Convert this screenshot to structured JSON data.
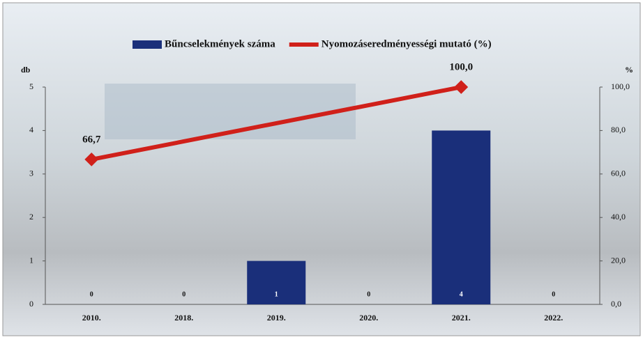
{
  "chart_data": {
    "type": "bar-line",
    "legend_position": "top",
    "y_label": "db",
    "y2_label": "%",
    "categories": [
      "2010.",
      "2018.",
      "2019.",
      "2020.",
      "2021.",
      "2022."
    ],
    "series": [
      {
        "name": "Bűncselekmények száma",
        "type": "bar",
        "color": "#1a2f7a",
        "values": [
          0,
          0,
          1,
          0,
          4,
          0
        ]
      },
      {
        "name": "Nyomozáseredményességi mutató (%)",
        "type": "line",
        "axis": "y2",
        "color": "#d0201a",
        "connect_gaps": true,
        "values": [
          66.7,
          null,
          null,
          null,
          100.0,
          null
        ],
        "value_labels": [
          "66,7",
          null,
          null,
          null,
          "100,0",
          null
        ]
      }
    ],
    "ylim": [
      0,
      5
    ],
    "yticks": [
      0,
      1,
      2,
      3,
      4,
      5
    ],
    "y2lim": [
      0,
      100
    ],
    "y2ticks": [
      {
        "value": 0,
        "label": "0,0"
      },
      {
        "value": 20,
        "label": "20,0"
      },
      {
        "value": 40,
        "label": "40,0"
      },
      {
        "value": 60,
        "label": "60,0"
      },
      {
        "value": 80,
        "label": "80,0"
      },
      {
        "value": 100,
        "label": "100,0"
      }
    ]
  }
}
